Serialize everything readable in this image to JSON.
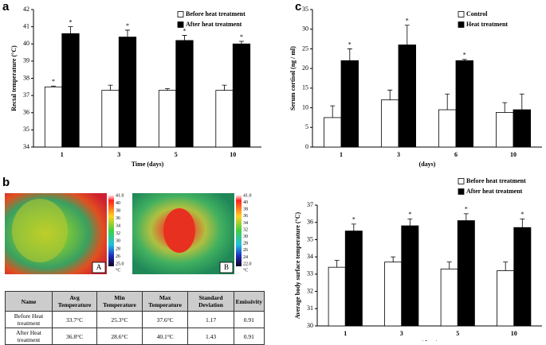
{
  "panel_labels": [
    "a",
    "b",
    "c"
  ],
  "chart_data": [
    {
      "type": "bar",
      "y_label": "Rectal temperature (°C)",
      "x_label": "Time (days)",
      "categories": [
        "1",
        "3",
        "5",
        "10"
      ],
      "ylim": [
        34,
        42
      ],
      "yticks": [
        34,
        35,
        36,
        37,
        38,
        39,
        40,
        41,
        42
      ],
      "legend": "upper right",
      "series": [
        {
          "name": "Before heat treatment",
          "color": "#ffffff",
          "values": [
            37.5,
            37.3,
            37.3,
            37.3
          ],
          "errors": [
            0.05,
            0.3,
            0.1,
            0.3
          ],
          "markers": [
            "*",
            null,
            null,
            null
          ]
        },
        {
          "name": "After heat treatment",
          "color": "#000000",
          "values": [
            40.6,
            40.4,
            40.2,
            40.0
          ],
          "errors": [
            0.4,
            0.4,
            0.3,
            0.15
          ],
          "markers": [
            "*",
            "*",
            "*",
            "*"
          ]
        }
      ]
    },
    {
      "type": "bar",
      "y_label": "Serum cortisol (ng / ml)",
      "x_label": "(days)",
      "categories": [
        "1",
        "3",
        "6",
        "10"
      ],
      "ylim": [
        0,
        35
      ],
      "yticks": [
        0,
        5,
        10,
        15,
        20,
        25,
        30,
        35
      ],
      "legend": "upper right",
      "series": [
        {
          "name": "Control",
          "color": "#ffffff",
          "values": [
            7.5,
            12,
            9.5,
            8.8
          ],
          "errors": [
            3,
            2.5,
            4,
            2.5
          ],
          "markers": [
            null,
            null,
            null,
            null
          ]
        },
        {
          "name": "Heat treatment",
          "color": "#000000",
          "values": [
            22,
            26,
            22,
            9.5
          ],
          "errors": [
            3,
            5,
            0.3,
            4
          ],
          "markers": [
            "*",
            "*",
            "*",
            null
          ]
        }
      ]
    },
    {
      "type": "bar",
      "y_label": "Average body surface temperature (°C)",
      "x_label": "(days)",
      "categories": [
        "1",
        "3",
        "5",
        "10"
      ],
      "ylim": [
        30,
        37
      ],
      "yticks": [
        30,
        31,
        32,
        33,
        34,
        35,
        36,
        37
      ],
      "legend": "above right",
      "series": [
        {
          "name": "Before heat treatment",
          "color": "#ffffff",
          "values": [
            33.4,
            33.7,
            33.3,
            33.2
          ],
          "errors": [
            0.4,
            0.3,
            0.4,
            0.5
          ],
          "markers": [
            null,
            null,
            null,
            null
          ]
        },
        {
          "name": "After heat treatment",
          "color": "#000000",
          "values": [
            35.5,
            35.8,
            36.1,
            35.7
          ],
          "errors": [
            0.4,
            0.4,
            0.4,
            0.5
          ],
          "markers": [
            "*",
            "*",
            "*",
            "*"
          ]
        }
      ]
    }
  ],
  "thermal": {
    "images": [
      {
        "label": "A",
        "scale_labels": [
          "41.0",
          "40",
          "38",
          "36",
          "34",
          "32",
          "30",
          "28",
          "26",
          "25.0"
        ],
        "scale_unit": "°C"
      },
      {
        "label": "B",
        "scale_labels": [
          "41.0",
          "40",
          "38",
          "36",
          "34",
          "32",
          "30",
          "28",
          "26",
          "24",
          "22.0"
        ],
        "scale_unit": "°C"
      }
    ],
    "table": {
      "header": [
        "Name",
        "Avg Temperature",
        "Min Temperature",
        "Max Temperature",
        "Standard Deviation",
        "Emissivity"
      ],
      "rows": [
        [
          "Before Heat treatment",
          "33.7°C",
          "25.3°C",
          "37.6°C",
          "1.17",
          "0.91"
        ],
        [
          "After Heat treatment",
          "36.8°C",
          "28.6°C",
          "40.1°C",
          "1.43",
          "0.91"
        ]
      ]
    }
  }
}
